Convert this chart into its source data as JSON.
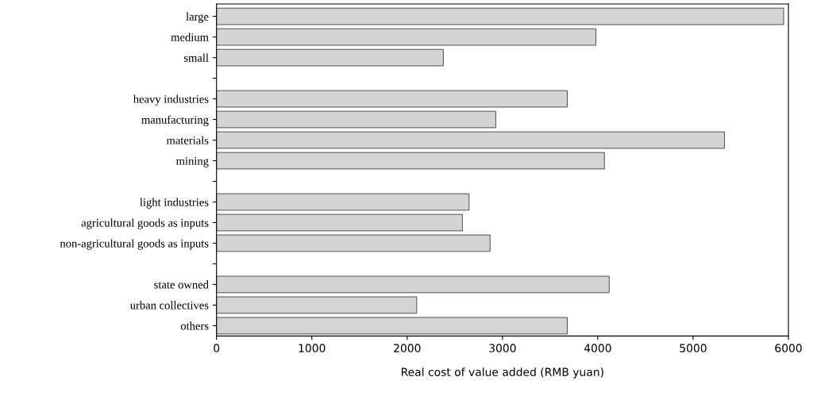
{
  "chart_data": {
    "type": "bar",
    "orientation": "horizontal",
    "xlabel": "Real cost of value added (RMB yuan)",
    "categories": [
      "large",
      "medium",
      "small",
      null,
      "heavy industries",
      "manufacturing",
      "materials",
      "mining",
      null,
      "light industries",
      "agricultural goods as inputs",
      "non-agricultural goods as inputs",
      null,
      "state owned",
      "urban collectives",
      "others"
    ],
    "values": [
      5950,
      3980,
      2380,
      null,
      3680,
      2930,
      5330,
      4070,
      null,
      2650,
      2580,
      2870,
      null,
      4120,
      2100,
      3680
    ],
    "color": "#d4d4d4",
    "xlim": [
      0,
      6000
    ],
    "xticks": [
      0,
      1000,
      2000,
      3000,
      4000,
      5000,
      6000
    ],
    "grid": false
  }
}
